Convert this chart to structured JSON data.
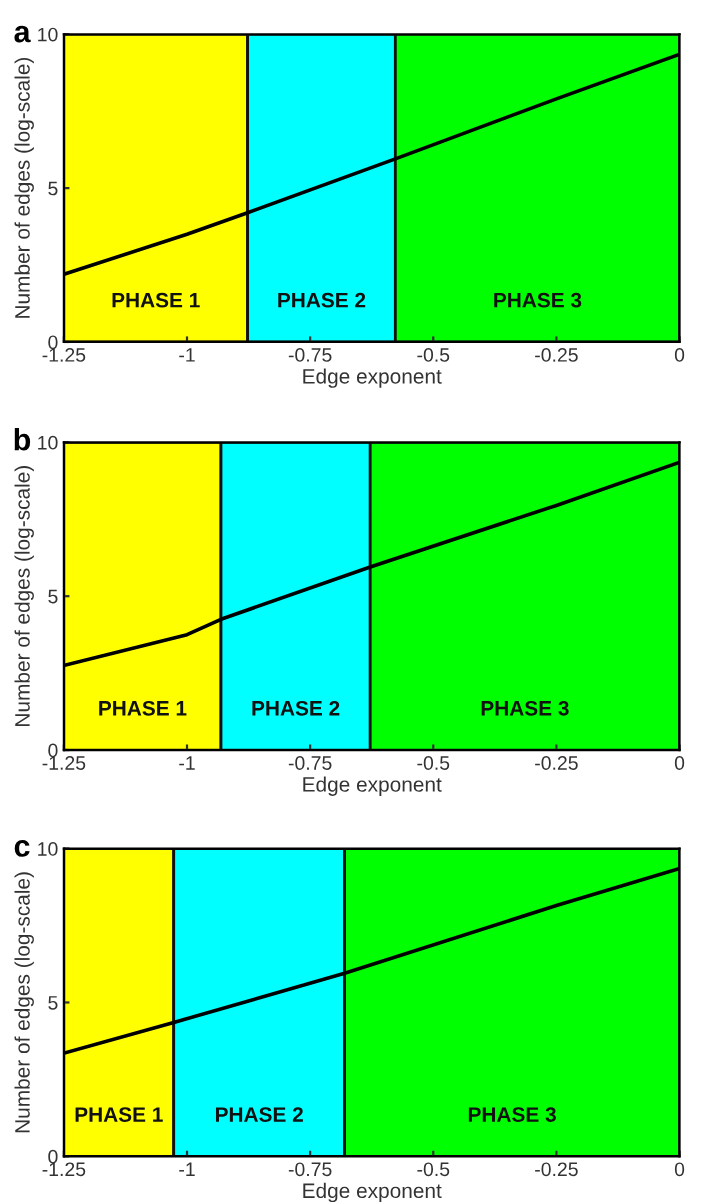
{
  "chart_data": [
    {
      "type": "line",
      "title": "a",
      "xlabel": "Edge exponent",
      "ylabel": "Number of edges (log-scale)",
      "xlim": [
        -1.25,
        0
      ],
      "ylim": [
        0,
        10
      ],
      "xticks": [
        -1.25,
        -1,
        -0.75,
        -0.5,
        -0.25,
        0
      ],
      "yticks": [
        0,
        5,
        10
      ],
      "grid": false,
      "series": [
        {
          "color": "#000000",
          "x": [
            -1.25,
            -1,
            -0.877,
            -0.577,
            -0.25,
            0
          ],
          "values": [
            2.2,
            3.5,
            4.2,
            5.95,
            7.9,
            9.35
          ]
        }
      ],
      "bands": [
        {
          "axis": "x",
          "from": -1.25,
          "to": -0.877,
          "label": "PHASE 1",
          "color": "#ffff00"
        },
        {
          "axis": "x",
          "from": -0.877,
          "to": -0.577,
          "label": "PHASE 2",
          "color": "#00ffff"
        },
        {
          "axis": "x",
          "from": -0.577,
          "to": 0,
          "label": "PHASE 3",
          "color": "#00ff00"
        }
      ]
    },
    {
      "type": "line",
      "title": "b",
      "xlabel": "Edge exponent",
      "ylabel": "Number of edges (log-scale)",
      "xlim": [
        -1.25,
        0
      ],
      "ylim": [
        0,
        10
      ],
      "xticks": [
        -1.25,
        -1,
        -0.75,
        -0.5,
        -0.25,
        0
      ],
      "yticks": [
        0,
        5,
        10
      ],
      "grid": false,
      "series": [
        {
          "color": "#000000",
          "x": [
            -1.25,
            -1,
            -0.931,
            -0.628,
            -0.25,
            0
          ],
          "values": [
            2.75,
            3.75,
            4.25,
            5.95,
            7.95,
            9.35
          ]
        }
      ],
      "bands": [
        {
          "axis": "x",
          "from": -1.25,
          "to": -0.931,
          "label": "PHASE 1",
          "color": "#ffff00"
        },
        {
          "axis": "x",
          "from": -0.931,
          "to": -0.628,
          "label": "PHASE 2",
          "color": "#00ffff"
        },
        {
          "axis": "x",
          "from": -0.628,
          "to": 0,
          "label": "PHASE 3",
          "color": "#00ff00"
        }
      ]
    },
    {
      "type": "line",
      "title": "c",
      "xlabel": "Edge exponent",
      "ylabel": "Number of edges (log-scale)",
      "xlim": [
        -1.25,
        0
      ],
      "ylim": [
        0,
        10
      ],
      "xticks": [
        -1.25,
        -1,
        -0.75,
        -0.5,
        -0.25,
        0
      ],
      "yticks": [
        0,
        5,
        10
      ],
      "grid": false,
      "series": [
        {
          "color": "#000000",
          "x": [
            -1.25,
            -1.027,
            -0.68,
            -0.25,
            0
          ],
          "values": [
            3.35,
            4.35,
            5.95,
            8.15,
            9.35
          ]
        }
      ],
      "bands": [
        {
          "axis": "x",
          "from": -1.25,
          "to": -1.027,
          "label": "PHASE 1",
          "color": "#ffff00"
        },
        {
          "axis": "x",
          "from": -1.027,
          "to": -0.68,
          "label": "PHASE 2",
          "color": "#00ffff"
        },
        {
          "axis": "x",
          "from": -0.68,
          "to": 0,
          "label": "PHASE 3",
          "color": "#00ff00"
        }
      ]
    }
  ]
}
